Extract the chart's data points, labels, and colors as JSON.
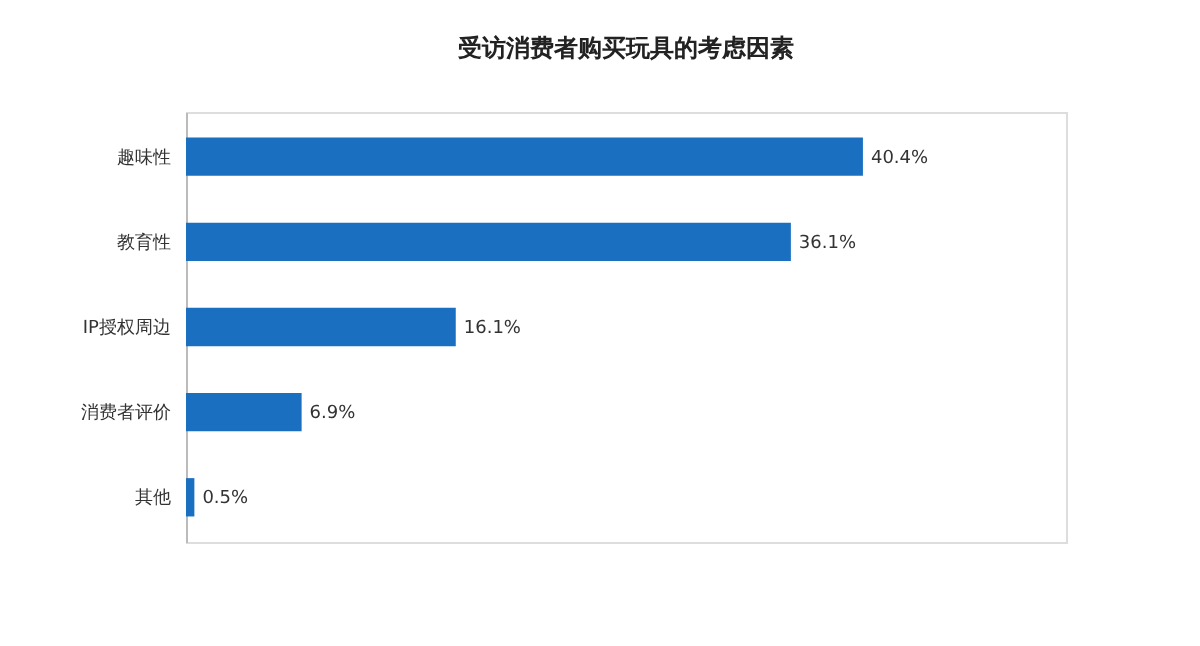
{
  "chart_data": {
    "type": "bar",
    "orientation": "horizontal",
    "title": "受访消费者购买玩具的考虑因素",
    "categories": [
      "趣味性",
      "教育性",
      "IP授权周边",
      "消费者评价",
      "其他"
    ],
    "values": [
      40.4,
      36.1,
      16.1,
      6.9,
      0.5
    ],
    "value_labels": [
      "40.4%",
      "36.1%",
      "16.1%",
      "6.9%",
      "0.5%"
    ],
    "color": "#1a6fc1",
    "grid": false
  }
}
